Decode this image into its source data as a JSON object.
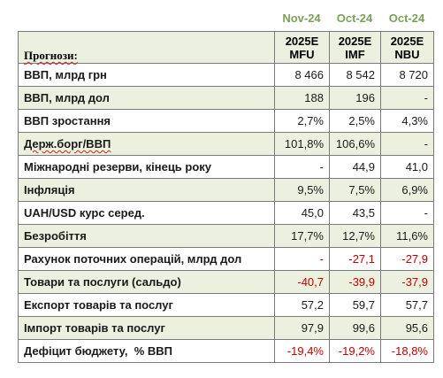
{
  "header": {
    "dates": [
      "Nov-24",
      "Oct-24",
      "Oct-24"
    ],
    "years": [
      "2025E",
      "2025E",
      "2025E"
    ],
    "sources": [
      "MFU",
      "IMF",
      "NBU"
    ]
  },
  "table": {
    "title": "Прогнози:",
    "rows": [
      {
        "label": "ВВП, млрд грн",
        "values": [
          "8 466",
          "8 542",
          "8 720"
        ]
      },
      {
        "label": "ВВП, млрд дол",
        "values": [
          "188",
          "196",
          "-"
        ]
      },
      {
        "label": "ВВП зростання",
        "values": [
          "2,7%",
          "2,5%",
          "4,3%"
        ]
      },
      {
        "label": "Держ.борг/ВВП",
        "values": [
          "101,8%",
          "106,6%",
          "-"
        ]
      },
      {
        "label": "Міжнародні резерви, кінець року",
        "values": [
          "-",
          "44,9",
          "41,0"
        ]
      },
      {
        "label": "Інфляція",
        "values": [
          "9,5%",
          "7,5%",
          "6,9%"
        ]
      },
      {
        "label": "UAH/USD курс серед.",
        "values": [
          "45,0",
          "43,5",
          "-"
        ]
      },
      {
        "label": "Безробіття",
        "values": [
          "17,7%",
          "12,7%",
          "11,6%"
        ]
      },
      {
        "label": "Рахунок поточних операцій, млрд дол",
        "values": [
          "-",
          "-27,1",
          "-27,9"
        ]
      },
      {
        "label": "Товари та послуги (сальдо)",
        "values": [
          "-40,7",
          "-39,9",
          "-37,9"
        ]
      },
      {
        "label": "Експорт товарів та послуг",
        "values": [
          "57,2",
          "59,7",
          "57,7"
        ]
      },
      {
        "label": "Імпорт товарів та послуг",
        "values": [
          "97,9",
          "99,6",
          "95,6"
        ]
      },
      {
        "label": "Дефіцит бюджету,  % ВВП",
        "values": [
          "-19,4%",
          "-19,2%",
          "-18,8%"
        ]
      }
    ]
  },
  "colors": {
    "date_header": "#7aa159",
    "shade": "#ebf1de",
    "negative": "#c00000"
  }
}
